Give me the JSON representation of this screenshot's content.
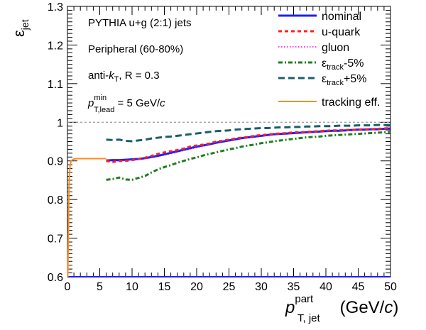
{
  "colors": {
    "nominal": "#1f1fff",
    "u_quark": "#ff1f1f",
    "gluon": "#ff33ff",
    "track_minus": "#1f7f1f",
    "track_plus": "#1a5f6a",
    "tracking_eff": "#ff8c1a",
    "reference_line": "#9a9a9a"
  },
  "annotations": {
    "line1": "PYTHIA u+g (2:1) jets",
    "line2": "Peripheral (60-80%)",
    "line3_pre": "anti-",
    "line3_k": "k",
    "line3_sub": "T",
    "line3_post": ", R = 0.3",
    "line4_p": "p",
    "line4_sup": "min",
    "line4_sub": "T,lead",
    "line4_post_pre": " = 5 GeV/",
    "line4_post_c": "c"
  },
  "chart_data": {
    "type": "line",
    "xlabel": {
      "main": "p",
      "sup": "part",
      "sub": "T, jet",
      "unit_pre": " (GeV/",
      "unit_c": "c",
      "unit_post": ")"
    },
    "ylabel": {
      "main": "ε",
      "sub": "jet"
    },
    "xlim": [
      0,
      50
    ],
    "ylim": [
      0.6,
      1.3
    ],
    "x_ticks": [
      0,
      5,
      10,
      15,
      20,
      25,
      30,
      35,
      40,
      45,
      50
    ],
    "x_tick_labels": [
      "0",
      "5",
      "10",
      "15",
      "20",
      "25",
      "30",
      "35",
      "40",
      "45",
      "50"
    ],
    "y_ticks": [
      0.6,
      0.7,
      0.8,
      0.9,
      1.0,
      1.1,
      1.2,
      1.3
    ],
    "y_tick_labels": [
      "0.6",
      "0.7",
      "0.8",
      "0.9",
      "1",
      "1.1",
      "1.2",
      "1.3"
    ],
    "reference_line": 1.0,
    "legend_position": "top-right",
    "legend": [
      {
        "key": "nominal",
        "label": "nominal"
      },
      {
        "key": "u_quark",
        "label": "u-quark"
      },
      {
        "key": "gluon",
        "label": "gluon"
      },
      {
        "key": "track_minus",
        "label_main": "ε",
        "label_sub": "track",
        "label_post": "-5%"
      },
      {
        "key": "track_plus",
        "label_main": "ε",
        "label_sub": "track",
        "label_post": "+5%"
      },
      {
        "key": "tracking_eff",
        "label": "tracking eff."
      }
    ],
    "series": [
      {
        "key": "nominal",
        "x": [
          6,
          7,
          8,
          9,
          10,
          11,
          12,
          13,
          14,
          15,
          16,
          17,
          18,
          19,
          20,
          21,
          22,
          23,
          24,
          25,
          26,
          27,
          28,
          29,
          30,
          31,
          32,
          33,
          34,
          35,
          36,
          37,
          38,
          39,
          40,
          41,
          42,
          43,
          44,
          45,
          46,
          47,
          48,
          49,
          50
        ],
        "y": [
          0.901,
          0.902,
          0.902,
          0.903,
          0.904,
          0.905,
          0.907,
          0.91,
          0.913,
          0.917,
          0.921,
          0.925,
          0.929,
          0.933,
          0.937,
          0.94,
          0.943,
          0.947,
          0.95,
          0.953,
          0.956,
          0.959,
          0.961,
          0.963,
          0.965,
          0.967,
          0.969,
          0.97,
          0.971,
          0.972,
          0.973,
          0.974,
          0.975,
          0.976,
          0.977,
          0.978,
          0.978,
          0.979,
          0.98,
          0.981,
          0.981,
          0.982,
          0.982,
          0.983,
          0.984
        ]
      },
      {
        "key": "u_quark",
        "x": [
          6,
          7,
          8,
          9,
          10,
          11,
          12,
          13,
          14,
          15,
          16,
          17,
          18,
          19,
          20,
          21,
          22,
          23,
          24,
          25,
          26,
          27,
          28,
          29,
          30,
          31,
          32,
          33,
          34,
          35,
          36,
          37,
          38,
          39,
          40,
          41,
          42,
          43,
          44,
          45,
          46,
          47,
          48,
          49,
          50
        ],
        "y": [
          0.9,
          0.897,
          0.9,
          0.9,
          0.902,
          0.905,
          0.908,
          0.913,
          0.918,
          0.922,
          0.925,
          0.928,
          0.932,
          0.937,
          0.94,
          0.942,
          0.945,
          0.95,
          0.952,
          0.955,
          0.958,
          0.96,
          0.962,
          0.965,
          0.967,
          0.968,
          0.97,
          0.971,
          0.972,
          0.974,
          0.974,
          0.975,
          0.976,
          0.977,
          0.978,
          0.979,
          0.979,
          0.98,
          0.98,
          0.981,
          0.982,
          0.982,
          0.983,
          0.984,
          0.985
        ]
      },
      {
        "key": "gluon",
        "x": [
          6,
          7,
          8,
          9,
          10,
          11,
          12,
          13,
          14,
          15,
          16,
          17,
          18,
          19,
          20,
          21,
          22,
          23,
          24,
          25,
          26,
          27,
          28,
          29,
          30,
          31,
          32,
          33,
          34,
          35,
          36,
          37,
          38,
          39,
          40,
          41,
          42,
          43,
          44,
          45,
          46,
          47,
          48,
          49,
          50
        ],
        "y": [
          0.899,
          0.9,
          0.9,
          0.901,
          0.903,
          0.904,
          0.906,
          0.909,
          0.912,
          0.915,
          0.919,
          0.923,
          0.927,
          0.931,
          0.935,
          0.938,
          0.942,
          0.946,
          0.949,
          0.952,
          0.955,
          0.958,
          0.96,
          0.962,
          0.964,
          0.966,
          0.968,
          0.969,
          0.97,
          0.971,
          0.972,
          0.973,
          0.974,
          0.975,
          0.976,
          0.977,
          0.977,
          0.978,
          0.979,
          0.98,
          0.98,
          0.981,
          0.981,
          0.982,
          0.983
        ]
      },
      {
        "key": "track_minus",
        "x": [
          6,
          7,
          8,
          9,
          10,
          11,
          12,
          13,
          14,
          15,
          16,
          17,
          18,
          19,
          20,
          21,
          22,
          23,
          24,
          25,
          26,
          27,
          28,
          29,
          30,
          31,
          32,
          33,
          34,
          35,
          36,
          37,
          38,
          39,
          40,
          41,
          42,
          43,
          44,
          45,
          46,
          47,
          48,
          49,
          50
        ],
        "y": [
          0.851,
          0.853,
          0.857,
          0.852,
          0.851,
          0.856,
          0.861,
          0.87,
          0.878,
          0.884,
          0.889,
          0.895,
          0.9,
          0.905,
          0.909,
          0.914,
          0.918,
          0.922,
          0.926,
          0.93,
          0.933,
          0.937,
          0.94,
          0.942,
          0.946,
          0.948,
          0.951,
          0.953,
          0.955,
          0.957,
          0.959,
          0.961,
          0.962,
          0.963,
          0.965,
          0.966,
          0.967,
          0.968,
          0.969,
          0.97,
          0.971,
          0.972,
          0.973,
          0.974,
          0.975
        ]
      },
      {
        "key": "track_plus",
        "x": [
          6,
          7,
          8,
          9,
          10,
          11,
          12,
          13,
          14,
          15,
          16,
          17,
          18,
          19,
          20,
          21,
          22,
          23,
          24,
          25,
          26,
          27,
          28,
          29,
          30,
          31,
          32,
          33,
          34,
          35,
          36,
          37,
          38,
          39,
          40,
          41,
          42,
          43,
          44,
          45,
          46,
          47,
          48,
          49,
          50
        ],
        "y": [
          0.955,
          0.954,
          0.955,
          0.952,
          0.951,
          0.953,
          0.955,
          0.958,
          0.96,
          0.962,
          0.963,
          0.965,
          0.967,
          0.969,
          0.971,
          0.973,
          0.975,
          0.977,
          0.978,
          0.979,
          0.981,
          0.982,
          0.983,
          0.984,
          0.985,
          0.985,
          0.986,
          0.987,
          0.987,
          0.988,
          0.988,
          0.989,
          0.989,
          0.99,
          0.99,
          0.99,
          0.991,
          0.991,
          0.991,
          0.992,
          0.992,
          0.992,
          0.993,
          0.993,
          0.993
        ]
      },
      {
        "key": "tracking_eff",
        "x": [
          0.05,
          0.1,
          0.15,
          0.2,
          0.25,
          0.3,
          0.35,
          0.4,
          0.5,
          0.6,
          0.8,
          1.0,
          1.5,
          2.0,
          3.0,
          4.0,
          5.0,
          6.0
        ],
        "y": [
          0.6,
          0.66,
          0.72,
          0.78,
          0.83,
          0.86,
          0.875,
          0.885,
          0.895,
          0.9,
          0.903,
          0.905,
          0.906,
          0.906,
          0.906,
          0.906,
          0.906,
          0.906
        ]
      },
      {
        "key": "nominal_floor",
        "x": [
          0,
          50
        ],
        "y": [
          0.6,
          0.6
        ]
      }
    ]
  }
}
